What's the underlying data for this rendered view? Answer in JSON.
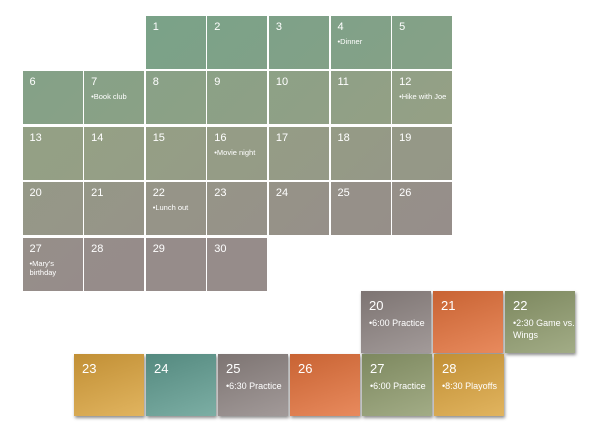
{
  "month_grid": {
    "days": [
      {
        "day": "1",
        "note": ""
      },
      {
        "day": "2",
        "note": ""
      },
      {
        "day": "3",
        "note": ""
      },
      {
        "day": "4",
        "note": "•Dinner"
      },
      {
        "day": "5",
        "note": ""
      },
      {
        "day": "6",
        "note": ""
      },
      {
        "day": "7",
        "note": "•Book club"
      },
      {
        "day": "8",
        "note": ""
      },
      {
        "day": "9",
        "note": ""
      },
      {
        "day": "10",
        "note": ""
      },
      {
        "day": "11",
        "note": ""
      },
      {
        "day": "12",
        "note": "•Hike with Joe"
      },
      {
        "day": "13",
        "note": ""
      },
      {
        "day": "14",
        "note": ""
      },
      {
        "day": "15",
        "note": ""
      },
      {
        "day": "16",
        "note": "•Movie night"
      },
      {
        "day": "17",
        "note": ""
      },
      {
        "day": "18",
        "note": ""
      },
      {
        "day": "19",
        "note": ""
      },
      {
        "day": "20",
        "note": ""
      },
      {
        "day": "21",
        "note": ""
      },
      {
        "day": "22",
        "note": "•Lunch out"
      },
      {
        "day": "23",
        "note": ""
      },
      {
        "day": "24",
        "note": ""
      },
      {
        "day": "25",
        "note": ""
      },
      {
        "day": "26",
        "note": ""
      },
      {
        "day": "27",
        "note": "•Mary's birthday"
      },
      {
        "day": "28",
        "note": ""
      },
      {
        "day": "29",
        "note": ""
      },
      {
        "day": "30",
        "note": ""
      }
    ],
    "color_top": "#76a289",
    "color_mid": "#95a085",
    "color_bottom": "#968c8a"
  },
  "schedule_tiles": [
    {
      "day": "20",
      "note": "•6:00 Practice",
      "color": "#8e8482"
    },
    {
      "day": "21",
      "note": "",
      "color": "#e3703a"
    },
    {
      "day": "22",
      "note": "•2:30 Game vs. Wings",
      "color": "#8e9a6c"
    },
    {
      "day": "23",
      "note": "",
      "color": "#dba33c"
    },
    {
      "day": "24",
      "note": "",
      "color": "#5f9c90"
    },
    {
      "day": "25",
      "note": "•6:30 Practice",
      "color": "#8e8482"
    },
    {
      "day": "26",
      "note": "",
      "color": "#e3703a"
    },
    {
      "day": "27",
      "note": "•6:00 Practice",
      "color": "#8e9a6c"
    },
    {
      "day": "28",
      "note": "•8:30 Playoffs",
      "color": "#dba33c"
    }
  ]
}
